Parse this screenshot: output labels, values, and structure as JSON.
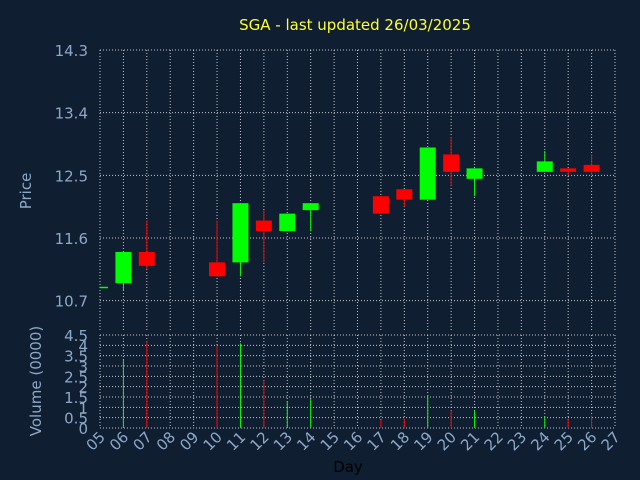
{
  "chart_data": {
    "type": "candlestick",
    "title": "SGA - last updated 26/03/2025",
    "colors": {
      "background": "#0f1e30",
      "up": "#00ff00",
      "down": "#ff0000",
      "grid": "#ffffff",
      "axis_text": "#8ea8c8",
      "title": "#ffff33"
    },
    "x_ticks": [
      "05",
      "06",
      "07",
      "08",
      "09",
      "10",
      "11",
      "12",
      "13",
      "14",
      "15",
      "16",
      "17",
      "18",
      "19",
      "20",
      "21",
      "22",
      "23",
      "24",
      "25",
      "26",
      "27"
    ],
    "xlabel": "Day",
    "price": {
      "ylabel": "Price",
      "ylim": [
        10.25,
        14.3
      ],
      "y_ticks": [
        "14.3",
        "13.4",
        "12.5",
        "11.6",
        "10.7"
      ],
      "y_tick_values": [
        14.3,
        13.4,
        12.5,
        11.6,
        10.7
      ],
      "candles": [
        {
          "day": 5,
          "open": 10.9,
          "high": 10.9,
          "low": 10.9,
          "close": 10.9
        },
        {
          "day": 6,
          "open": 10.95,
          "high": 11.4,
          "low": 10.85,
          "close": 11.4
        },
        {
          "day": 7,
          "open": 11.4,
          "high": 11.85,
          "low": 11.15,
          "close": 11.2
        },
        {
          "day": 10,
          "open": 11.25,
          "high": 11.85,
          "low": 11.05,
          "close": 11.05
        },
        {
          "day": 11,
          "open": 11.25,
          "high": 12.1,
          "low": 11.05,
          "close": 12.1
        },
        {
          "day": 12,
          "open": 11.85,
          "high": 12.0,
          "low": 11.25,
          "close": 11.7
        },
        {
          "day": 13,
          "open": 11.7,
          "high": 11.95,
          "low": 11.7,
          "close": 11.95
        },
        {
          "day": 14,
          "open": 12.0,
          "high": 12.1,
          "low": 11.7,
          "close": 12.1
        },
        {
          "day": 17,
          "open": 12.2,
          "high": 12.2,
          "low": 11.95,
          "close": 11.95
        },
        {
          "day": 18,
          "open": 12.3,
          "high": 12.3,
          "low": 12.05,
          "close": 12.15
        },
        {
          "day": 19,
          "open": 12.15,
          "high": 12.9,
          "low": 12.15,
          "close": 12.9
        },
        {
          "day": 20,
          "open": 12.8,
          "high": 13.05,
          "low": 12.35,
          "close": 12.55
        },
        {
          "day": 21,
          "open": 12.45,
          "high": 12.6,
          "low": 12.2,
          "close": 12.6
        },
        {
          "day": 24,
          "open": 12.55,
          "high": 12.85,
          "low": 12.55,
          "close": 12.7
        },
        {
          "day": 25,
          "open": 12.6,
          "high": 12.6,
          "low": 12.5,
          "close": 12.55
        },
        {
          "day": 26,
          "open": 12.65,
          "high": 12.8,
          "low": 12.5,
          "close": 12.55
        }
      ]
    },
    "volume": {
      "ylabel": "Volume (0000)",
      "ylim": [
        0,
        4.5
      ],
      "y_ticks": [
        "4.5",
        "4",
        "3.5",
        "3",
        "2.5",
        "2",
        "1.5",
        "1",
        "0.5",
        "0"
      ],
      "y_tick_values": [
        4.5,
        4,
        3.5,
        3,
        2.5,
        2,
        1.5,
        1,
        0.5,
        0
      ],
      "bars": [
        {
          "day": 6,
          "value": 3.3,
          "direction": "up"
        },
        {
          "day": 7,
          "value": 4.2,
          "direction": "down"
        },
        {
          "day": 10,
          "value": 4.0,
          "direction": "down"
        },
        {
          "day": 11,
          "value": 4.1,
          "direction": "up"
        },
        {
          "day": 12,
          "value": 2.3,
          "direction": "down"
        },
        {
          "day": 13,
          "value": 1.3,
          "direction": "up"
        },
        {
          "day": 14,
          "value": 1.4,
          "direction": "up"
        },
        {
          "day": 17,
          "value": 0.4,
          "direction": "down"
        },
        {
          "day": 18,
          "value": 0.45,
          "direction": "down"
        },
        {
          "day": 19,
          "value": 1.6,
          "direction": "up"
        },
        {
          "day": 20,
          "value": 0.85,
          "direction": "down"
        },
        {
          "day": 21,
          "value": 0.85,
          "direction": "up"
        },
        {
          "day": 24,
          "value": 0.55,
          "direction": "up"
        },
        {
          "day": 25,
          "value": 0.45,
          "direction": "down"
        },
        {
          "day": 26,
          "value": 0.6,
          "direction": "down"
        }
      ]
    }
  }
}
